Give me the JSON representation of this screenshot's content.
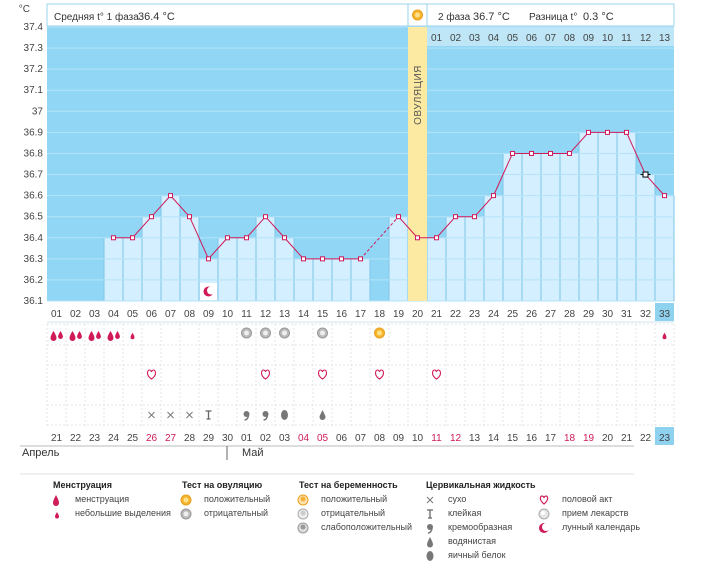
{
  "chart_data": {
    "type": "line",
    "title": "",
    "xlabel": "",
    "ylabel": "°C",
    "ylim": [
      36.1,
      37.4
    ],
    "yticks": [
      "37.4",
      "37.3",
      "37.2",
      "37.1",
      "37",
      "36.9",
      "36.8",
      "36.7",
      "36.6",
      "36.5",
      "36.4",
      "36.3",
      "36.2",
      "36.1"
    ],
    "header": {
      "phase1_label": "Средняя t° 1 фаза",
      "phase1_value": "36.4 °C",
      "phase2_label": "2 фаза",
      "phase2_value": "36.7 °C",
      "diff_label": "Разница t°",
      "diff_value": "0.3 °C"
    },
    "ovulation_label": "ОВУЛЯЦИЯ",
    "ovulation_day": 20,
    "cycle_days": [
      "01",
      "02",
      "03",
      "04",
      "05",
      "06",
      "07",
      "08",
      "09",
      "10",
      "11",
      "12",
      "13",
      "14",
      "15",
      "16",
      "17",
      "18",
      "19",
      "20",
      "21",
      "22",
      "23",
      "24",
      "25",
      "26",
      "27",
      "28",
      "29",
      "30",
      "31",
      "32",
      "33"
    ],
    "phase2_days": [
      "01",
      "02",
      "03",
      "04",
      "05",
      "06",
      "07",
      "08",
      "09",
      "10",
      "11",
      "12",
      "13"
    ],
    "current_day": 33,
    "series": [
      {
        "values": [
          null,
          null,
          null,
          36.4,
          36.4,
          36.5,
          36.6,
          36.5,
          36.3,
          36.4,
          36.4,
          36.5,
          36.4,
          36.3,
          36.3,
          36.3,
          36.3,
          null,
          36.5,
          36.4,
          36.4,
          36.5,
          36.5,
          36.6,
          36.8,
          36.8,
          36.8,
          36.8,
          36.9,
          36.9,
          36.9,
          36.7,
          36.6
        ]
      }
    ],
    "calendar": {
      "dates": [
        "21",
        "22",
        "23",
        "24",
        "25",
        "26",
        "27",
        "28",
        "29",
        "30",
        "01",
        "02",
        "03",
        "04",
        "05",
        "06",
        "07",
        "08",
        "09",
        "10",
        "11",
        "12",
        "13",
        "14",
        "15",
        "16",
        "17",
        "18",
        "19",
        "20",
        "21",
        "22",
        "23"
      ],
      "weekend_days": [
        6,
        7,
        14,
        15,
        21,
        22,
        28,
        29
      ],
      "months": [
        "Апрель",
        "Май"
      ]
    },
    "marks": {
      "menstruation_heavy": [
        1,
        2,
        3,
        4
      ],
      "menstruation_light": [
        5,
        33
      ],
      "ovulation_test_negative": [
        11,
        12,
        13,
        15
      ],
      "ovulation_test_positive": [
        18
      ],
      "lunar": [
        9
      ],
      "intercourse": [
        6,
        12,
        15,
        18,
        21
      ],
      "fluid_dry": [
        6,
        7,
        8
      ],
      "fluid_sticky": [
        9
      ],
      "fluid_creamy": [
        11,
        12
      ],
      "fluid_watery": [
        15
      ],
      "fluid_eggwhite": [
        13
      ]
    },
    "legend": {
      "menstruation": {
        "title": "Менструация",
        "items": [
          "менструация",
          "небольшие выделения"
        ]
      },
      "ovulation_test": {
        "title": "Тест на овуляцию",
        "items": [
          "положительный",
          "отрицательный"
        ]
      },
      "pregnancy_test": {
        "title": "Тест на беременность",
        "items": [
          "положительный",
          "отрицательный",
          "слабоположительный"
        ]
      },
      "cervical_fluid": {
        "title": "Цервикальная жидкость",
        "items": [
          "сухо",
          "клейкая",
          "кремообразная",
          "водянистая",
          "яичный белок"
        ]
      },
      "other": {
        "items": [
          "половой акт",
          "прием лекарств",
          "лунный календарь"
        ]
      }
    },
    "colors": {
      "plot_bg": "#91d6f4",
      "bar_fill": "#d4efff",
      "bar_stroke": "#7ec6ea",
      "line": "#d01a5a",
      "ovulation": "#fce9a2",
      "current_day": "#bfe6f7"
    }
  }
}
